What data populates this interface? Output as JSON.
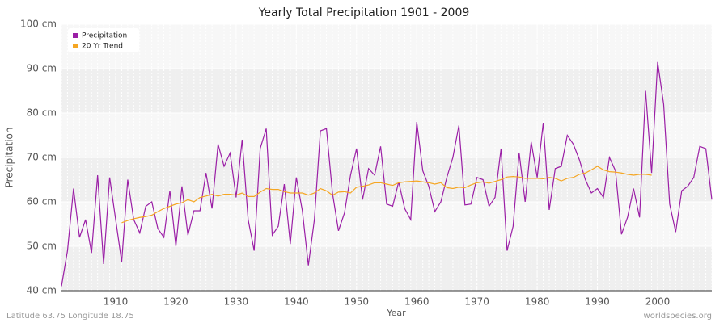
{
  "chart_data": {
    "type": "line",
    "title": "Yearly Total Precipitation 1901 - 2009",
    "x_label": "Year",
    "y_label": "Precipitation",
    "footer_left": "Latitude 63.75 Longitude 18.75",
    "footer_right": "worldspecies.org",
    "legend": "upper left",
    "grid": true,
    "x": [
      1901,
      1902,
      1903,
      1904,
      1905,
      1906,
      1907,
      1908,
      1909,
      1910,
      1911,
      1912,
      1913,
      1914,
      1915,
      1916,
      1917,
      1918,
      1919,
      1920,
      1921,
      1922,
      1923,
      1924,
      1925,
      1926,
      1927,
      1928,
      1929,
      1930,
      1931,
      1932,
      1933,
      1934,
      1935,
      1936,
      1937,
      1938,
      1939,
      1940,
      1941,
      1942,
      1943,
      1944,
      1945,
      1946,
      1947,
      1948,
      1949,
      1950,
      1951,
      1952,
      1953,
      1954,
      1955,
      1956,
      1957,
      1958,
      1959,
      1960,
      1961,
      1962,
      1963,
      1964,
      1965,
      1966,
      1967,
      1968,
      1969,
      1970,
      1971,
      1972,
      1973,
      1974,
      1975,
      1976,
      1977,
      1978,
      1979,
      1980,
      1981,
      1982,
      1983,
      1984,
      1985,
      1986,
      1987,
      1988,
      1989,
      1990,
      1991,
      1992,
      1993,
      1994,
      1995,
      1996,
      1997,
      1998,
      1999,
      2000,
      2001,
      2002,
      2003,
      2004,
      2005,
      2006,
      2007,
      2008,
      2009
    ],
    "series": [
      {
        "name": "Precipitation",
        "color": "#9b1fa6",
        "values": [
          41,
          49,
          63,
          52,
          56,
          48.5,
          66,
          46,
          65.5,
          56,
          46.5,
          65,
          56,
          53,
          59,
          60,
          54,
          52,
          62.5,
          50,
          63.5,
          52.5,
          58,
          58,
          66.5,
          58.5,
          73,
          68,
          71,
          61,
          74,
          56,
          49,
          72,
          76.5,
          52.5,
          54.5,
          64,
          50.5,
          65.5,
          58,
          45.7,
          56,
          76,
          76.5,
          62,
          53.5,
          57.5,
          66,
          72,
          60.5,
          67.5,
          66,
          72.5,
          59.5,
          59,
          64.5,
          58.5,
          56,
          78,
          67,
          63.5,
          57.8,
          60,
          65.5,
          70,
          77.2,
          59.3,
          59.5,
          65.5,
          65,
          59,
          61,
          72,
          49,
          54.5,
          71,
          60,
          73.5,
          65.5,
          77.8,
          58.2,
          67.5,
          68,
          75,
          73,
          69.5,
          65,
          62,
          63,
          61,
          70,
          67,
          52.7,
          56.5,
          63,
          56.5,
          85,
          66.5,
          91.5,
          82,
          59.5,
          53.2,
          62.5,
          63.5,
          65.5,
          72.5,
          72,
          60.5
        ]
      },
      {
        "name": "20 Yr Trend",
        "color": "#f5a623",
        "values": [
          null,
          null,
          null,
          null,
          null,
          null,
          null,
          null,
          null,
          null,
          55.3,
          55.8,
          56.2,
          56.5,
          56.7,
          57,
          57.8,
          58.5,
          59,
          59.5,
          59.8,
          60.5,
          60,
          61,
          61.3,
          61.7,
          61.3,
          61.7,
          61.7,
          61.5,
          62,
          61.2,
          61.2,
          62.2,
          63,
          62.8,
          62.8,
          62.3,
          62,
          62,
          62,
          61.5,
          62,
          63,
          62.5,
          61.5,
          62.2,
          62.3,
          62,
          63.3,
          63.5,
          63.8,
          64.3,
          64.3,
          64,
          63.7,
          64.3,
          64.5,
          64.6,
          64.7,
          64.5,
          64.3,
          64,
          64.3,
          63.2,
          63,
          63.3,
          63.2,
          63.8,
          64.3,
          64.5,
          64.2,
          64.6,
          65,
          65.6,
          65.7,
          65.6,
          65.3,
          65.3,
          65.3,
          65.2,
          65.5,
          65.3,
          64.7,
          65.3,
          65.5,
          66.2,
          66.5,
          67.2,
          68,
          67.2,
          66.8,
          66.7,
          66.5,
          66.2,
          66,
          66.2,
          66.2,
          66,
          null,
          null,
          null,
          null,
          null,
          null,
          null,
          null,
          null,
          null
        ]
      }
    ],
    "xlim": [
      1901,
      2009
    ],
    "xticks": [
      1910,
      1920,
      1930,
      1940,
      1950,
      1960,
      1970,
      1980,
      1990,
      2000
    ],
    "ylim": [
      40,
      100
    ],
    "yticks": [
      {
        "value": 40,
        "label": "40 cm"
      },
      {
        "value": 50,
        "label": "50 cm"
      },
      {
        "value": 60,
        "label": "60 cm"
      },
      {
        "value": 70,
        "label": "70 cm"
      },
      {
        "value": 80,
        "label": "80 cm"
      },
      {
        "value": 90,
        "label": "90 cm"
      },
      {
        "value": 100,
        "label": "100 cm"
      }
    ]
  }
}
